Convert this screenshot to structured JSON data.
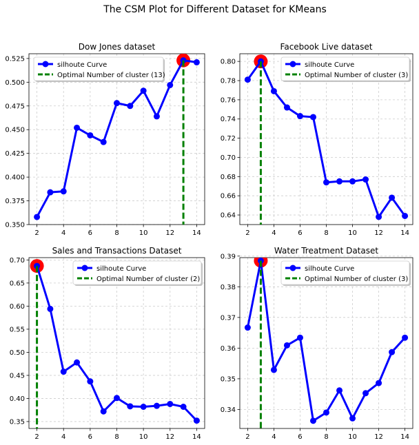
{
  "figure": {
    "suptitle": "The CSM Plot for Different Dataset for KMeans"
  },
  "colors": {
    "curve": "#0000ff",
    "optimal_line": "#008000",
    "optimal_marker": "#ff0000",
    "grid": "#cccccc"
  },
  "chart_data": [
    {
      "type": "line",
      "title": "Dow Jones dataset",
      "x": [
        2,
        3,
        4,
        5,
        6,
        7,
        8,
        9,
        10,
        11,
        12,
        13,
        14
      ],
      "series": [
        {
          "name": "silhoute Curve",
          "values": [
            0.358,
            0.384,
            0.385,
            0.452,
            0.444,
            0.437,
            0.478,
            0.475,
            0.491,
            0.464,
            0.497,
            0.523,
            0.521
          ]
        }
      ],
      "optimal": {
        "label": "Optimal Number of cluster (13)",
        "k": 13,
        "value": 0.523
      },
      "xlim": [
        1.4,
        14.6
      ],
      "ylim": [
        0.35,
        0.53
      ],
      "xticks": [
        2,
        4,
        6,
        8,
        10,
        12,
        14
      ],
      "yticks": [
        0.35,
        0.375,
        0.4,
        0.425,
        0.45,
        0.475,
        0.5,
        0.525
      ],
      "ytick_labels": [
        "0.350",
        "0.375",
        "0.400",
        "0.425",
        "0.450",
        "0.475",
        "0.500",
        "0.525"
      ],
      "legend": "upper-left",
      "grid": true
    },
    {
      "type": "line",
      "title": "Facebook Live dataset",
      "x": [
        2,
        3,
        4,
        5,
        6,
        7,
        8,
        9,
        10,
        11,
        12,
        13,
        14
      ],
      "series": [
        {
          "name": "silhoute Curve",
          "values": [
            0.781,
            0.8,
            0.769,
            0.752,
            0.743,
            0.742,
            0.674,
            0.675,
            0.675,
            0.677,
            0.638,
            0.658,
            0.639
          ]
        }
      ],
      "optimal": {
        "label": "Optimal Number of cluster (3)",
        "k": 3,
        "value": 0.8
      },
      "xlim": [
        1.4,
        14.6
      ],
      "ylim": [
        0.63,
        0.808
      ],
      "xticks": [
        2,
        4,
        6,
        8,
        10,
        12,
        14
      ],
      "yticks": [
        0.64,
        0.66,
        0.68,
        0.7,
        0.72,
        0.74,
        0.76,
        0.78,
        0.8
      ],
      "ytick_labels": [
        "0.64",
        "0.66",
        "0.68",
        "0.70",
        "0.72",
        "0.74",
        "0.76",
        "0.78",
        "0.80"
      ],
      "legend": "upper-right",
      "grid": true
    },
    {
      "type": "line",
      "title": "Sales and Transactions Dataset",
      "x": [
        2,
        3,
        4,
        5,
        6,
        7,
        8,
        9,
        10,
        11,
        12,
        13,
        14
      ],
      "series": [
        {
          "name": "silhoute Curve",
          "values": [
            0.687,
            0.594,
            0.458,
            0.478,
            0.437,
            0.372,
            0.401,
            0.383,
            0.382,
            0.384,
            0.388,
            0.382,
            0.352
          ]
        }
      ],
      "optimal": {
        "label": "Optimal Number of cluster (2)",
        "k": 2,
        "value": 0.687
      },
      "xlim": [
        1.4,
        14.6
      ],
      "ylim": [
        0.335,
        0.705
      ],
      "xticks": [
        2,
        4,
        6,
        8,
        10,
        12,
        14
      ],
      "yticks": [
        0.35,
        0.4,
        0.45,
        0.5,
        0.55,
        0.6,
        0.65,
        0.7
      ],
      "ytick_labels": [
        "0.35",
        "0.40",
        "0.45",
        "0.50",
        "0.55",
        "0.60",
        "0.65",
        "0.70"
      ],
      "legend": "upper-right",
      "grid": true
    },
    {
      "type": "line",
      "title": "Water Treatment Dataset",
      "x": [
        2,
        3,
        4,
        5,
        6,
        7,
        8,
        9,
        10,
        11,
        12,
        13,
        14
      ],
      "series": [
        {
          "name": "silhoute Curve",
          "values": [
            0.3667,
            0.3885,
            0.3529,
            0.3609,
            0.3634,
            0.3363,
            0.339,
            0.3462,
            0.3371,
            0.3453,
            0.3486,
            0.3587,
            0.3634
          ]
        }
      ],
      "optimal": {
        "label": "Optimal Number of cluster (3)",
        "k": 3,
        "value": 0.3885
      },
      "xlim": [
        1.4,
        14.6
      ],
      "ylim": [
        0.3338,
        0.3895
      ],
      "xticks": [
        2,
        4,
        6,
        8,
        10,
        12,
        14
      ],
      "yticks": [
        0.34,
        0.35,
        0.36,
        0.37,
        0.38,
        0.39
      ],
      "ytick_labels": [
        "0.34",
        "0.35",
        "0.36",
        "0.37",
        "0.38",
        "0.39"
      ],
      "legend": "upper-right",
      "grid": true
    }
  ]
}
